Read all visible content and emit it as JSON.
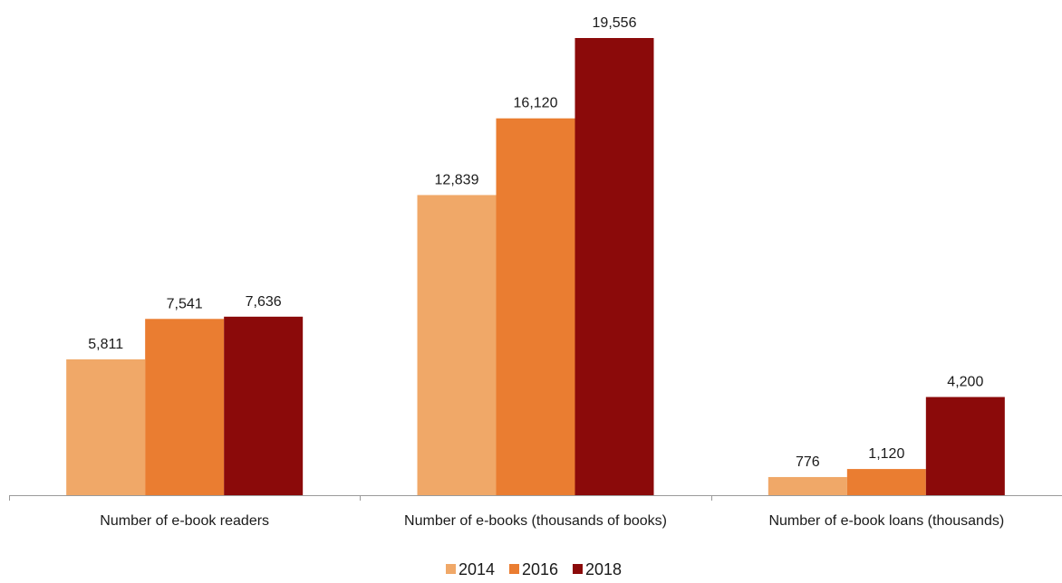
{
  "chart_data": {
    "type": "bar",
    "categories": [
      "Number of e-book readers",
      "Number of e-books (thousands of books)",
      "Number of e-book loans (thousands)"
    ],
    "series": [
      {
        "name": "2014",
        "color": "#F0A868",
        "values": [
          5811,
          12839,
          776
        ],
        "labels": [
          "5,811",
          "12,839",
          "776"
        ]
      },
      {
        "name": "2016",
        "color": "#EA7D31",
        "values": [
          7541,
          16120,
          1120
        ],
        "labels": [
          "7,541",
          "16,120",
          "1,120"
        ]
      },
      {
        "name": "2018",
        "color": "#8B0A0A",
        "values": [
          7636,
          19556,
          4200
        ],
        "labels": [
          "7,636",
          "19,556",
          "4,200"
        ]
      }
    ],
    "ylim": [
      0,
      20000
    ],
    "grid": false,
    "legend_position": "bottom-center"
  }
}
